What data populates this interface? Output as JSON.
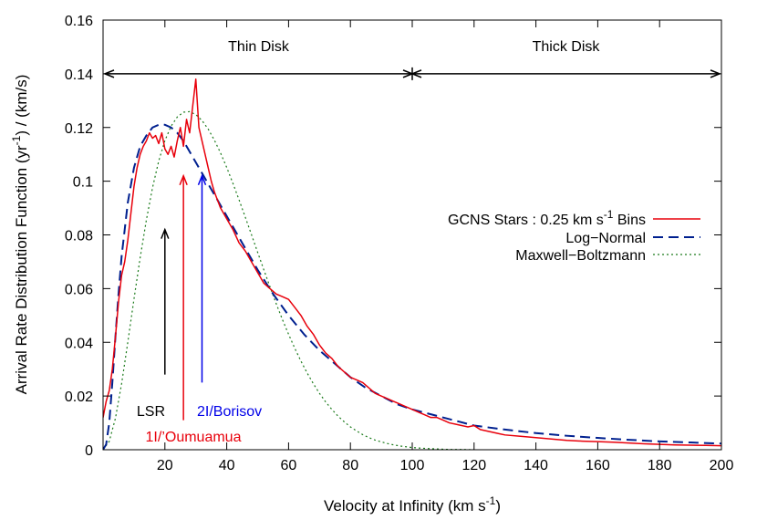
{
  "chart_data": {
    "type": "line",
    "title": "",
    "xlabel": "Velocity at Infinity (km s",
    "xlabel_sup": "-1",
    "xlabel_end": ")",
    "ylabel": "Arrival Rate Distribution Function (yr",
    "ylabel_sup": "-1",
    "ylabel_end": ") / (km/s)",
    "xlim": [
      0,
      200
    ],
    "ylim": [
      0,
      0.16
    ],
    "xticks": [
      20,
      40,
      60,
      80,
      100,
      120,
      140,
      160,
      180,
      200
    ],
    "xtick_labels": [
      "20",
      "40",
      "60",
      "80",
      "100",
      "120",
      "140",
      "160",
      "180",
      "200"
    ],
    "yticks": [
      0,
      0.02,
      0.04,
      0.06,
      0.08,
      0.1,
      0.12,
      0.14,
      0.16
    ],
    "ytick_labels": [
      "0",
      "0.02",
      "0.04",
      "0.06",
      "0.08",
      "0.1",
      "0.12",
      "0.14",
      "0.16"
    ],
    "grid": false,
    "legend_position": "right",
    "series": [
      {
        "name": "GCNS Stars : 0.25 km s",
        "name_sup": "-1",
        "name_end": " Bins",
        "style": "solid",
        "color": "#e8000b",
        "x": [
          0,
          1,
          2,
          3,
          4,
          5,
          6,
          7,
          8,
          9,
          10,
          11,
          12,
          13,
          14,
          15,
          16,
          17,
          18,
          19,
          20,
          21,
          22,
          23,
          24,
          25,
          26,
          27,
          28,
          29,
          30,
          31,
          32,
          33,
          34,
          35,
          36,
          38,
          40,
          42,
          44,
          46,
          48,
          50,
          52,
          54,
          56,
          58,
          60,
          62,
          64,
          66,
          68,
          70,
          72,
          74,
          76,
          78,
          80,
          82,
          84,
          86,
          88,
          90,
          92,
          94,
          96,
          98,
          100,
          102,
          104,
          106,
          108,
          110,
          112,
          114,
          116,
          118,
          120,
          122,
          124,
          126,
          128,
          130,
          135,
          140,
          145,
          150,
          155,
          160,
          165,
          170,
          175,
          180,
          185,
          190,
          195,
          200
        ],
        "y": [
          0.012,
          0.018,
          0.022,
          0.03,
          0.042,
          0.055,
          0.065,
          0.07,
          0.078,
          0.088,
          0.098,
          0.105,
          0.11,
          0.113,
          0.115,
          0.118,
          0.116,
          0.117,
          0.114,
          0.118,
          0.112,
          0.11,
          0.113,
          0.109,
          0.115,
          0.12,
          0.113,
          0.123,
          0.118,
          0.128,
          0.138,
          0.12,
          0.115,
          0.11,
          0.105,
          0.1,
          0.096,
          0.09,
          0.086,
          0.082,
          0.077,
          0.074,
          0.07,
          0.066,
          0.062,
          0.06,
          0.058,
          0.057,
          0.056,
          0.053,
          0.05,
          0.046,
          0.043,
          0.039,
          0.036,
          0.034,
          0.031,
          0.029,
          0.027,
          0.026,
          0.025,
          0.023,
          0.021,
          0.02,
          0.019,
          0.018,
          0.017,
          0.016,
          0.015,
          0.014,
          0.013,
          0.012,
          0.012,
          0.011,
          0.01,
          0.0095,
          0.009,
          0.0085,
          0.009,
          0.0075,
          0.007,
          0.0065,
          0.006,
          0.0055,
          0.005,
          0.0045,
          0.004,
          0.0035,
          0.0032,
          0.003,
          0.0028,
          0.0025,
          0.0022,
          0.002,
          0.0018,
          0.0017,
          0.0016,
          0.0015
        ]
      },
      {
        "name": "Log−Normal",
        "style": "dashed",
        "color": "#00208f",
        "x": [
          0,
          1,
          2,
          3,
          4,
          5,
          6,
          8,
          10,
          12,
          14,
          16,
          18,
          20,
          22,
          24,
          26,
          28,
          30,
          32,
          35,
          40,
          45,
          50,
          55,
          60,
          65,
          70,
          75,
          80,
          85,
          90,
          95,
          100,
          110,
          120,
          130,
          140,
          150,
          160,
          170,
          180,
          190,
          200
        ],
        "y": [
          0,
          0.002,
          0.01,
          0.025,
          0.042,
          0.058,
          0.072,
          0.092,
          0.105,
          0.113,
          0.117,
          0.12,
          0.121,
          0.121,
          0.12,
          0.118,
          0.115,
          0.111,
          0.107,
          0.103,
          0.097,
          0.087,
          0.077,
          0.067,
          0.058,
          0.05,
          0.043,
          0.037,
          0.032,
          0.027,
          0.023,
          0.02,
          0.017,
          0.015,
          0.012,
          0.009,
          0.0075,
          0.0062,
          0.0052,
          0.0044,
          0.0037,
          0.0031,
          0.0027,
          0.0023
        ]
      },
      {
        "name": "Maxwell−Boltzmann",
        "style": "dotted",
        "color": "#1a7a1a",
        "x": [
          0,
          2,
          4,
          6,
          8,
          10,
          12,
          14,
          16,
          18,
          20,
          22,
          24,
          26,
          28,
          30,
          32,
          34,
          36,
          38,
          40,
          42,
          44,
          46,
          48,
          50,
          52,
          54,
          56,
          58,
          60,
          62,
          64,
          66,
          68,
          70,
          72,
          74,
          76,
          78,
          80,
          82,
          84,
          86,
          88,
          90,
          92,
          94,
          96,
          98,
          100,
          104,
          108,
          112,
          116,
          120
        ],
        "y": [
          0,
          0.0031,
          0.0117,
          0.0246,
          0.04,
          0.0561,
          0.0715,
          0.0855,
          0.0976,
          0.1075,
          0.1151,
          0.1205,
          0.1239,
          0.1257,
          0.1259,
          0.1248,
          0.1226,
          0.1194,
          0.1153,
          0.1105,
          0.1051,
          0.0992,
          0.093,
          0.0866,
          0.0801,
          0.0735,
          0.067,
          0.0606,
          0.0544,
          0.0485,
          0.043,
          0.0378,
          0.033,
          0.0286,
          0.0246,
          0.021,
          0.0178,
          0.015,
          0.0125,
          0.0104,
          0.0085,
          0.007,
          0.0056,
          0.0045,
          0.0036,
          0.0029,
          0.0023,
          0.0018,
          0.0014,
          0.0011,
          0.0008,
          0.0005,
          0.0003,
          0.0001,
          0.0001,
          0
        ]
      }
    ],
    "region_arrows": [
      {
        "name": "thin-disk",
        "label": "Thin Disk",
        "x_start": 0,
        "x_end": 100,
        "y": 0.14
      },
      {
        "name": "thick-disk",
        "label": "Thick Disk",
        "x_start": 100,
        "x_end": 200,
        "y": 0.14
      }
    ],
    "annotations": [
      {
        "name": "lsr",
        "label": "LSR",
        "x": 20,
        "y_tail": 0.028,
        "y_head": 0.082,
        "color": "#000000"
      },
      {
        "name": "oumuamua",
        "label": "1I/’Oumuamua",
        "x": 26,
        "y_tail": 0.011,
        "y_head": 0.102,
        "color": "#e8000b"
      },
      {
        "name": "borisov",
        "label": "2I/Borisov",
        "x": 32,
        "y_tail": 0.025,
        "y_head": 0.102,
        "color": "#0000e8"
      }
    ]
  }
}
